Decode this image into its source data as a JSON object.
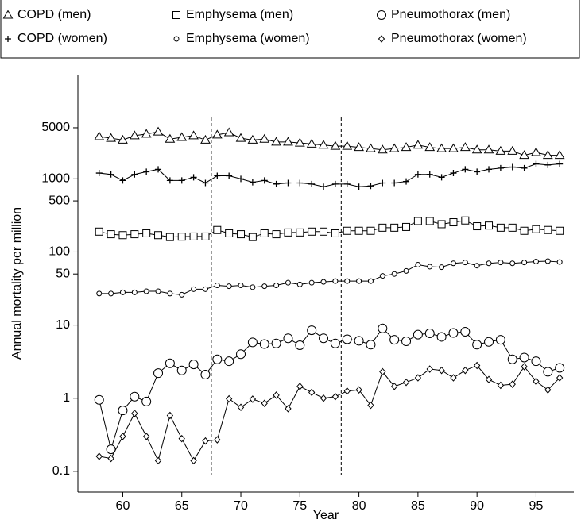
{
  "chart_data": {
    "type": "line",
    "xlabel": "Year",
    "ylabel": "Annual mortality per million",
    "x": [
      58,
      59,
      60,
      61,
      62,
      63,
      64,
      65,
      66,
      67,
      68,
      69,
      70,
      71,
      72,
      73,
      74,
      75,
      76,
      77,
      78,
      79,
      80,
      81,
      82,
      83,
      84,
      85,
      86,
      87,
      88,
      89,
      90,
      91,
      92,
      93,
      94,
      95,
      96,
      97
    ],
    "xlim": [
      56.2,
      98.2
    ],
    "xticks": [
      60,
      65,
      70,
      75,
      80,
      85,
      90,
      95
    ],
    "ylim": [
      0.052,
      26000
    ],
    "yticks": [
      0.1,
      1,
      10,
      50,
      100,
      500,
      1000,
      5000
    ],
    "yscale": "log",
    "vlines": [
      67.5,
      78.5
    ],
    "series": [
      {
        "name": "COPD (men)",
        "color": "#000000",
        "marker": "triangle",
        "values": [
          3800,
          3600,
          3400,
          3900,
          4100,
          4400,
          3500,
          3700,
          3900,
          3400,
          4000,
          4300,
          3600,
          3400,
          3500,
          3200,
          3200,
          3100,
          3000,
          2900,
          2800,
          2800,
          2700,
          2600,
          2500,
          2600,
          2700,
          2900,
          2700,
          2600,
          2600,
          2700,
          2500,
          2500,
          2400,
          2400,
          2100,
          2300,
          2100,
          2100
        ]
      },
      {
        "name": "Emphysema (men)",
        "color": "#000000",
        "marker": "square",
        "values": [
          190,
          175,
          170,
          175,
          180,
          170,
          160,
          162,
          163,
          163,
          200,
          180,
          175,
          160,
          180,
          175,
          185,
          185,
          190,
          190,
          180,
          195,
          195,
          195,
          215,
          215,
          220,
          265,
          265,
          240,
          255,
          270,
          225,
          230,
          215,
          215,
          195,
          205,
          200,
          195
        ]
      },
      {
        "name": "Pneumothorax (men)",
        "color": "#000000",
        "marker": "circle",
        "values": [
          0.95,
          0.2,
          0.68,
          1.05,
          0.9,
          2.2,
          3.0,
          2.4,
          2.9,
          2.1,
          3.4,
          3.2,
          4.0,
          5.8,
          5.5,
          5.6,
          6.6,
          5.3,
          8.5,
          6.6,
          5.6,
          6.4,
          6.1,
          5.4,
          9.0,
          6.3,
          6.0,
          7.4,
          7.7,
          6.9,
          7.8,
          8.1,
          5.4,
          5.9,
          6.3,
          3.4,
          3.6,
          3.2,
          2.3,
          2.6
        ]
      },
      {
        "name": "COPD (women)",
        "color": "#000000",
        "marker": "plus",
        "values": [
          1200,
          1150,
          950,
          1150,
          1250,
          1350,
          950,
          950,
          1050,
          880,
          1100,
          1100,
          1000,
          900,
          950,
          850,
          880,
          880,
          850,
          780,
          850,
          850,
          780,
          800,
          880,
          880,
          920,
          1150,
          1150,
          1050,
          1200,
          1350,
          1250,
          1350,
          1400,
          1450,
          1400,
          1600,
          1550,
          1600
        ]
      },
      {
        "name": "Emphysema (women)",
        "color": "#000000",
        "marker": "small-circle",
        "values": [
          27,
          27,
          28,
          28,
          29,
          29,
          27,
          26,
          31,
          31,
          35,
          34,
          35,
          33,
          34,
          35,
          38,
          36,
          38,
          39,
          40,
          40,
          40,
          40,
          47,
          50,
          55,
          67,
          63,
          62,
          70,
          72,
          65,
          70,
          72,
          70,
          72,
          74,
          75,
          73
        ]
      },
      {
        "name": "Pneumothorax (women)",
        "color": "#000000",
        "marker": "diamond",
        "values": [
          0.16,
          0.15,
          0.3,
          0.62,
          0.3,
          0.14,
          0.58,
          0.28,
          0.14,
          0.26,
          0.27,
          0.98,
          0.75,
          0.97,
          0.85,
          1.1,
          0.72,
          1.45,
          1.2,
          1.0,
          1.05,
          1.25,
          1.3,
          0.8,
          2.3,
          1.45,
          1.65,
          1.9,
          2.5,
          2.4,
          1.9,
          2.4,
          2.8,
          1.8,
          1.5,
          1.55,
          2.7,
          1.7,
          1.3,
          1.9
        ]
      }
    ]
  }
}
